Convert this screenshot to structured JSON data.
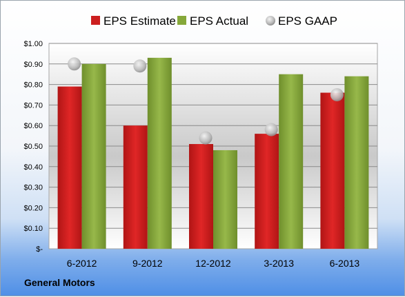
{
  "chart_data": {
    "type": "bar",
    "categories": [
      "6-2012",
      "9-2012",
      "12-2012",
      "3-2013",
      "6-2013"
    ],
    "series": [
      {
        "name": "EPS Estimate",
        "kind": "bar",
        "color": "#cc1f1f",
        "values": [
          0.79,
          0.6,
          0.51,
          0.56,
          0.76
        ]
      },
      {
        "name": "EPS Actual",
        "kind": "bar",
        "color": "#86a83a",
        "values": [
          0.9,
          0.93,
          0.48,
          0.85,
          0.84
        ]
      },
      {
        "name": "EPS GAAP",
        "kind": "marker",
        "color": "#c8c8c8",
        "values": [
          0.9,
          0.89,
          0.54,
          0.58,
          0.75
        ]
      }
    ],
    "yticks": [
      "$-",
      "$0.10",
      "$0.20",
      "$0.30",
      "$0.40",
      "$0.50",
      "$0.60",
      "$0.70",
      "$0.80",
      "$0.90",
      "$1.00"
    ],
    "ylim": [
      0,
      1.0
    ],
    "grid": true,
    "legend": "top",
    "title": "",
    "xlabel": "",
    "ylabel": ""
  },
  "company": "General Motors"
}
